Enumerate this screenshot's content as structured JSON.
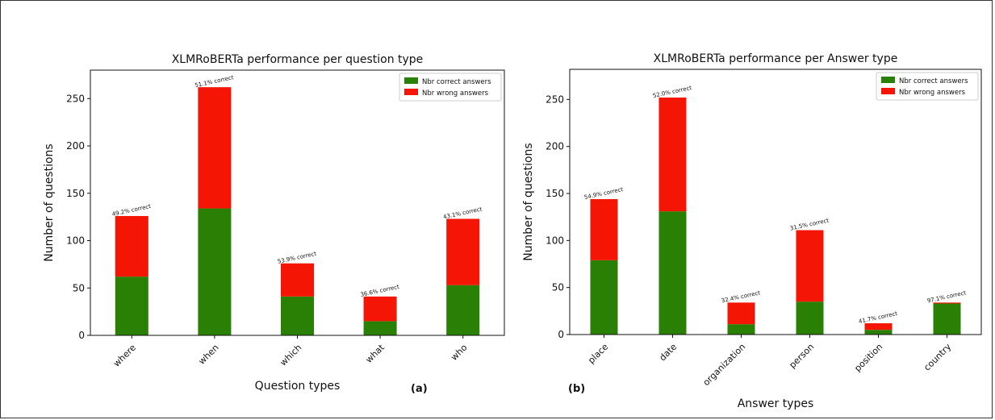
{
  "colors": {
    "correct": "#2a7f05",
    "wrong": "#f51505"
  },
  "panels": [
    {
      "label": "(a)"
    },
    {
      "label": "(b)"
    }
  ],
  "chart_data": [
    {
      "type": "bar",
      "stacked": true,
      "title": "XLMRoBERTa performance per question type",
      "xlabel": "Question types",
      "ylabel": "Number of questions",
      "ylim": [
        0,
        280
      ],
      "yticks": [
        "0",
        "50",
        "100",
        "150",
        "200",
        "250"
      ],
      "categories": [
        "where",
        "when",
        "which",
        "what",
        "who"
      ],
      "series": [
        {
          "name": "Nbr correct answers",
          "values": [
            62,
            134,
            41,
            15,
            53
          ]
        },
        {
          "name": "Nbr wrong answers",
          "values": [
            64,
            128,
            35,
            26,
            70
          ]
        }
      ],
      "annotations": [
        "49.2% correct",
        "51.1% correct",
        "53.9% correct",
        "36.6% correct",
        "43.1% correct"
      ],
      "legend": "top-right",
      "grid": false
    },
    {
      "type": "bar",
      "stacked": true,
      "title": "XLMRoBERTa performance per Answer type",
      "xlabel": "Answer types",
      "ylabel": "Number of questions",
      "ylim": [
        0,
        282
      ],
      "yticks": [
        "0",
        "50",
        "100",
        "150",
        "200",
        "250"
      ],
      "categories": [
        "place",
        "date",
        "organization",
        "person",
        "position",
        "country"
      ],
      "series": [
        {
          "name": "Nbr correct answers",
          "values": [
            79,
            131,
            11,
            35,
            5,
            33
          ]
        },
        {
          "name": "Nbr wrong answers",
          "values": [
            65,
            121,
            23,
            76,
            7,
            1
          ]
        }
      ],
      "annotations": [
        "54.9% correct",
        "52.0% correct",
        "32.4% correct",
        "31.5% correct",
        "41.7% correct",
        "97.1% correct"
      ],
      "legend": "top-right",
      "grid": false
    }
  ]
}
